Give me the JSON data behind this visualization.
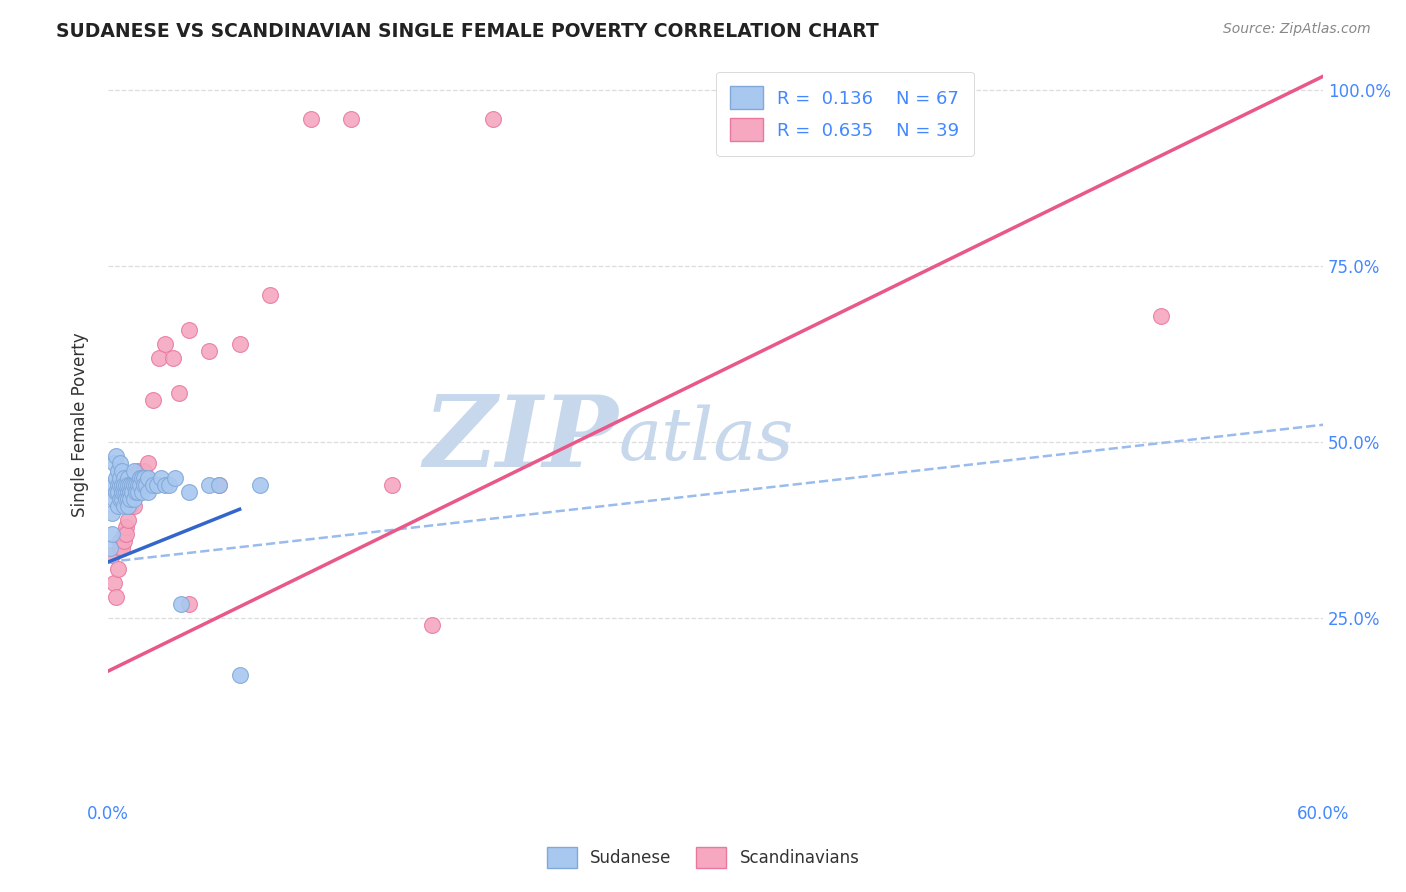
{
  "title": "SUDANESE VS SCANDINAVIAN SINGLE FEMALE POVERTY CORRELATION CHART",
  "source": "Source: ZipAtlas.com",
  "ylabel": "Single Female Poverty",
  "xlim": [
    0.0,
    0.6
  ],
  "ylim": [
    0.0,
    1.05
  ],
  "sudanese_color": "#a8c8f0",
  "scandinavian_color": "#f5a8c0",
  "sudanese_edge": "#80a8d8",
  "scandinavian_edge": "#e878a0",
  "trend_blue_solid": "#3366cc",
  "trend_blue_dash": "#99bbee",
  "trend_pink": "#e85888",
  "watermark_zip": "ZIP",
  "watermark_atlas": "atlas",
  "watermark_color_zip": "#c8d8ec",
  "watermark_color_atlas": "#c8d8ec",
  "background_color": "#ffffff",
  "grid_color": "#dddddd",
  "title_color": "#222222",
  "right_tick_color": "#4488ff",
  "sudanese_x": [
    0.001,
    0.002,
    0.002,
    0.003,
    0.003,
    0.003,
    0.004,
    0.004,
    0.004,
    0.005,
    0.005,
    0.005,
    0.005,
    0.006,
    0.006,
    0.006,
    0.006,
    0.007,
    0.007,
    0.007,
    0.007,
    0.008,
    0.008,
    0.008,
    0.008,
    0.009,
    0.009,
    0.009,
    0.01,
    0.01,
    0.01,
    0.01,
    0.01,
    0.011,
    0.011,
    0.011,
    0.012,
    0.012,
    0.013,
    0.013,
    0.013,
    0.014,
    0.014,
    0.015,
    0.015,
    0.016,
    0.016,
    0.017,
    0.017,
    0.018,
    0.018,
    0.019,
    0.02,
    0.02,
    0.022,
    0.024,
    0.026,
    0.028,
    0.03,
    0.033,
    0.036,
    0.04,
    0.05,
    0.055,
    0.065,
    0.075
  ],
  "sudanese_y": [
    0.35,
    0.37,
    0.4,
    0.42,
    0.44,
    0.47,
    0.45,
    0.43,
    0.48,
    0.44,
    0.46,
    0.43,
    0.41,
    0.47,
    0.44,
    0.42,
    0.45,
    0.44,
    0.42,
    0.46,
    0.43,
    0.45,
    0.43,
    0.41,
    0.44,
    0.43,
    0.42,
    0.44,
    0.45,
    0.43,
    0.44,
    0.42,
    0.41,
    0.44,
    0.43,
    0.42,
    0.44,
    0.43,
    0.46,
    0.44,
    0.42,
    0.44,
    0.43,
    0.44,
    0.43,
    0.45,
    0.44,
    0.45,
    0.43,
    0.45,
    0.44,
    0.44,
    0.45,
    0.43,
    0.44,
    0.44,
    0.45,
    0.44,
    0.44,
    0.45,
    0.27,
    0.43,
    0.44,
    0.44,
    0.17,
    0.44
  ],
  "scandinavian_x": [
    0.002,
    0.003,
    0.004,
    0.005,
    0.006,
    0.006,
    0.007,
    0.008,
    0.008,
    0.009,
    0.009,
    0.01,
    0.011,
    0.012,
    0.013,
    0.014,
    0.015,
    0.016,
    0.017,
    0.018,
    0.019,
    0.02,
    0.022,
    0.025,
    0.028,
    0.032,
    0.035,
    0.04,
    0.05,
    0.055,
    0.065,
    0.08,
    0.1,
    0.12,
    0.14,
    0.16,
    0.19,
    0.52,
    0.04
  ],
  "scandinavian_y": [
    0.34,
    0.3,
    0.28,
    0.32,
    0.35,
    0.36,
    0.35,
    0.37,
    0.36,
    0.38,
    0.37,
    0.39,
    0.41,
    0.43,
    0.41,
    0.44,
    0.46,
    0.45,
    0.44,
    0.46,
    0.45,
    0.47,
    0.56,
    0.62,
    0.64,
    0.62,
    0.57,
    0.66,
    0.63,
    0.44,
    0.64,
    0.71,
    0.96,
    0.96,
    0.44,
    0.24,
    0.96,
    0.68,
    0.27
  ],
  "blue_trend_x0": 0.0,
  "blue_trend_y0": 0.33,
  "blue_trend_x1": 0.065,
  "blue_trend_y1": 0.405,
  "blue_trend_xend": 0.6,
  "blue_trend_yend": 0.525,
  "pink_trend_x0": 0.0,
  "pink_trend_y0": 0.175,
  "pink_trend_x1": 0.6,
  "pink_trend_y1": 1.02
}
